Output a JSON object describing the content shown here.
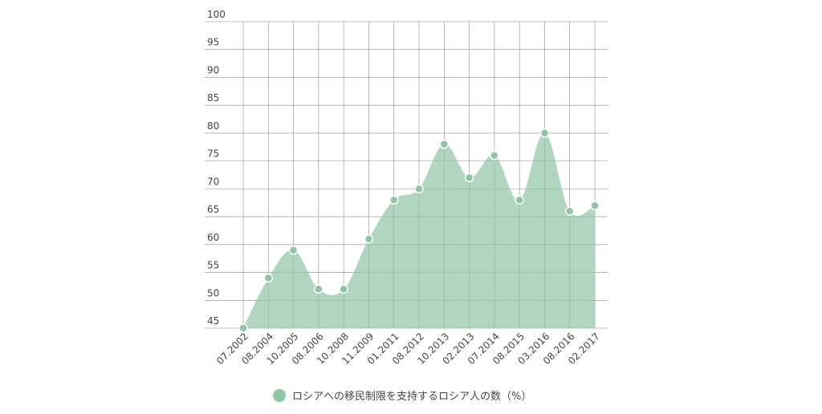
{
  "chart_data": {
    "type": "area",
    "categories": [
      "07.2002",
      "08.2004",
      "10.2005",
      "08.2006",
      "10.2008",
      "11.2009",
      "01.2011",
      "08.2012",
      "10.2013",
      "02.2013",
      "07.2014",
      "08.2015",
      "03.2016",
      "08.2016",
      "02.2017"
    ],
    "series": [
      {
        "name": "ロシアへの移民制限を支持するロシア人の数（%）",
        "color": "#8fc4a4",
        "values": [
          45,
          54,
          59,
          52,
          52,
          61,
          68,
          70,
          78,
          72,
          76,
          68,
          80,
          66,
          67
        ]
      }
    ],
    "ylim": [
      45,
      100
    ],
    "yticks": [
      45,
      50,
      55,
      60,
      65,
      70,
      75,
      80,
      85,
      90,
      95,
      100
    ],
    "grid": true
  }
}
